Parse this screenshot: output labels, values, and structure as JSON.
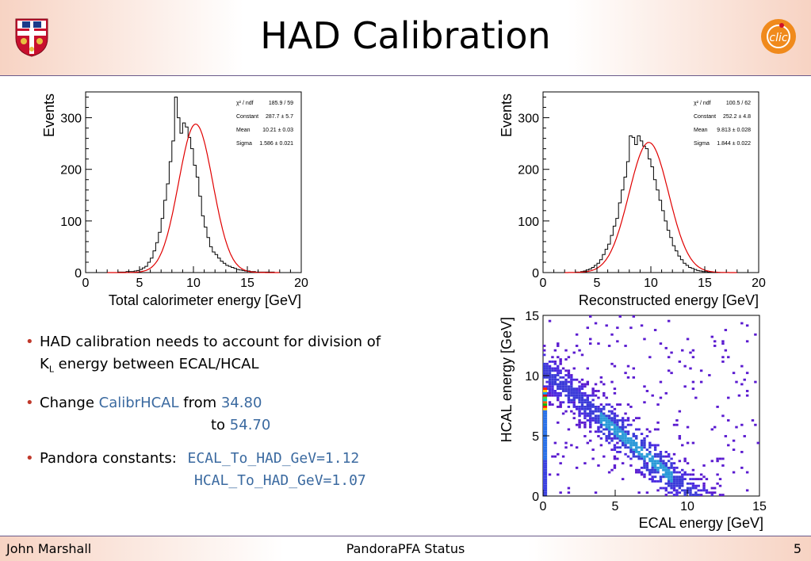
{
  "slide": {
    "title": "HAD Calibration",
    "footer": {
      "author": "John Marshall",
      "center": "PandoraPFA Status",
      "page": "5"
    }
  },
  "bullets": {
    "b1_line1": "HAD calibration needs to account for division of",
    "b1_k": "K",
    "b1_sub": "L",
    "b1_rest": " energy between ECAL/HCAL",
    "b2_pre": "Change ",
    "b2_param": "CalibrHCAL",
    "b2_from": " from ",
    "b2_old": "34.80",
    "b2_to": "to ",
    "b2_new": "54.70",
    "b3_label": "Pandora constants:",
    "b3_const1": "ECAL_To_HAD_GeV=1.12",
    "b3_const2": "HCAL_To_HAD_GeV=1.07"
  },
  "colors": {
    "fit_line": "#e00000",
    "bullet_dot": "#c0392b",
    "highlight": "#3b6aa0"
  },
  "chart_data": [
    {
      "type": "bar",
      "ylabel": "Events",
      "xlabel": "Total calorimeter energy [GeV]",
      "xlim": [
        0,
        20
      ],
      "ylim": [
        0,
        350
      ],
      "xticks": [
        "0",
        "5",
        "10",
        "15",
        "20"
      ],
      "yticks": [
        "0",
        "100",
        "200",
        "300"
      ],
      "fit": {
        "constant": 287.7,
        "mean": 10.21,
        "sigma": 1.586
      },
      "stats": [
        [
          "χ² / ndf",
          "185.9 / 59"
        ],
        [
          "Constant",
          "287.7 ± 5.7"
        ],
        [
          "Mean",
          "10.21 ± 0.03"
        ],
        [
          "Sigma",
          "1.586 ± 0.021"
        ]
      ],
      "bin_width": 0.25,
      "x_start": 3.0,
      "values": [
        1,
        1,
        1,
        2,
        2,
        2,
        3,
        4,
        6,
        9,
        12,
        20,
        28,
        42,
        58,
        78,
        105,
        140,
        172,
        215,
        255,
        340,
        300,
        270,
        290,
        282,
        262,
        240,
        208,
        185,
        148,
        110,
        88,
        68,
        50,
        40,
        35,
        28,
        22,
        18,
        14,
        12,
        10,
        8,
        6,
        5,
        4,
        3,
        3,
        2,
        2,
        1,
        1,
        1,
        1,
        1,
        1,
        1
      ]
    },
    {
      "type": "bar",
      "ylabel": "Events",
      "xlabel": "Reconstructed energy [GeV]",
      "xlim": [
        0,
        20
      ],
      "ylim": [
        0,
        350
      ],
      "xticks": [
        "0",
        "5",
        "10",
        "15",
        "20"
      ],
      "yticks": [
        "0",
        "100",
        "200",
        "300"
      ],
      "fit": {
        "constant": 252.2,
        "mean": 9.813,
        "sigma": 1.844
      },
      "stats": [
        [
          "χ² / ndf",
          "100.5 / 62"
        ],
        [
          "Constant",
          "252.2 ± 4.8"
        ],
        [
          "Mean",
          "9.813 ± 0.028"
        ],
        [
          "Sigma",
          "1.844 ± 0.022"
        ]
      ],
      "bin_width": 0.25,
      "x_start": 3.0,
      "values": [
        1,
        1,
        2,
        3,
        5,
        7,
        10,
        14,
        18,
        25,
        35,
        45,
        55,
        72,
        90,
        105,
        135,
        160,
        185,
        215,
        265,
        262,
        248,
        265,
        255,
        245,
        240,
        220,
        205,
        180,
        160,
        140,
        120,
        100,
        82,
        68,
        52,
        42,
        32,
        25,
        18,
        14,
        10,
        8,
        6,
        4,
        3,
        2,
        2,
        1,
        1,
        1
      ]
    },
    {
      "type": "heatmap",
      "ylabel": "HCAL energy [GeV]",
      "xlabel": "ECAL energy [GeV]",
      "xlim": [
        0,
        15
      ],
      "ylim": [
        0,
        15
      ],
      "xticks": [
        "0",
        "5",
        "10",
        "15"
      ],
      "yticks": [
        "0",
        "5",
        "10",
        "15"
      ]
    }
  ]
}
